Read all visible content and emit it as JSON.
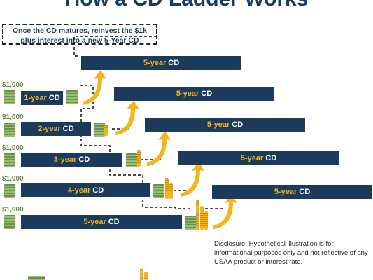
{
  "title": "How a CD Ladder Works",
  "callout": {
    "line1": "Once the CD matures, reinvest the $1k",
    "line2": "plus interest into a new 5-Year CD"
  },
  "amount_label": "$1,000",
  "initial_cds": [
    {
      "term": "1-year",
      "suffix": "CD"
    },
    {
      "term": "2-year",
      "suffix": "CD"
    },
    {
      "term": "3-year",
      "suffix": "CD"
    },
    {
      "term": "4-year",
      "suffix": "CD"
    },
    {
      "term": "5-year",
      "suffix": "CD"
    }
  ],
  "reinvested_cds": [
    {
      "term": "5-year",
      "suffix": "CD"
    },
    {
      "term": "5-year",
      "suffix": "CD"
    },
    {
      "term": "5-year",
      "suffix": "CD"
    },
    {
      "term": "5-year",
      "suffix": "CD"
    },
    {
      "term": "5-year",
      "suffix": "CD"
    }
  ],
  "disclaimer": "Disclosure: Hypothetical illustration is for informational purposes only and not reflective of any USAA product or interest rate.",
  "colors": {
    "navy": "#1b3a5c",
    "gold": "#f5b51a",
    "money_green": "#5d8a3a"
  }
}
